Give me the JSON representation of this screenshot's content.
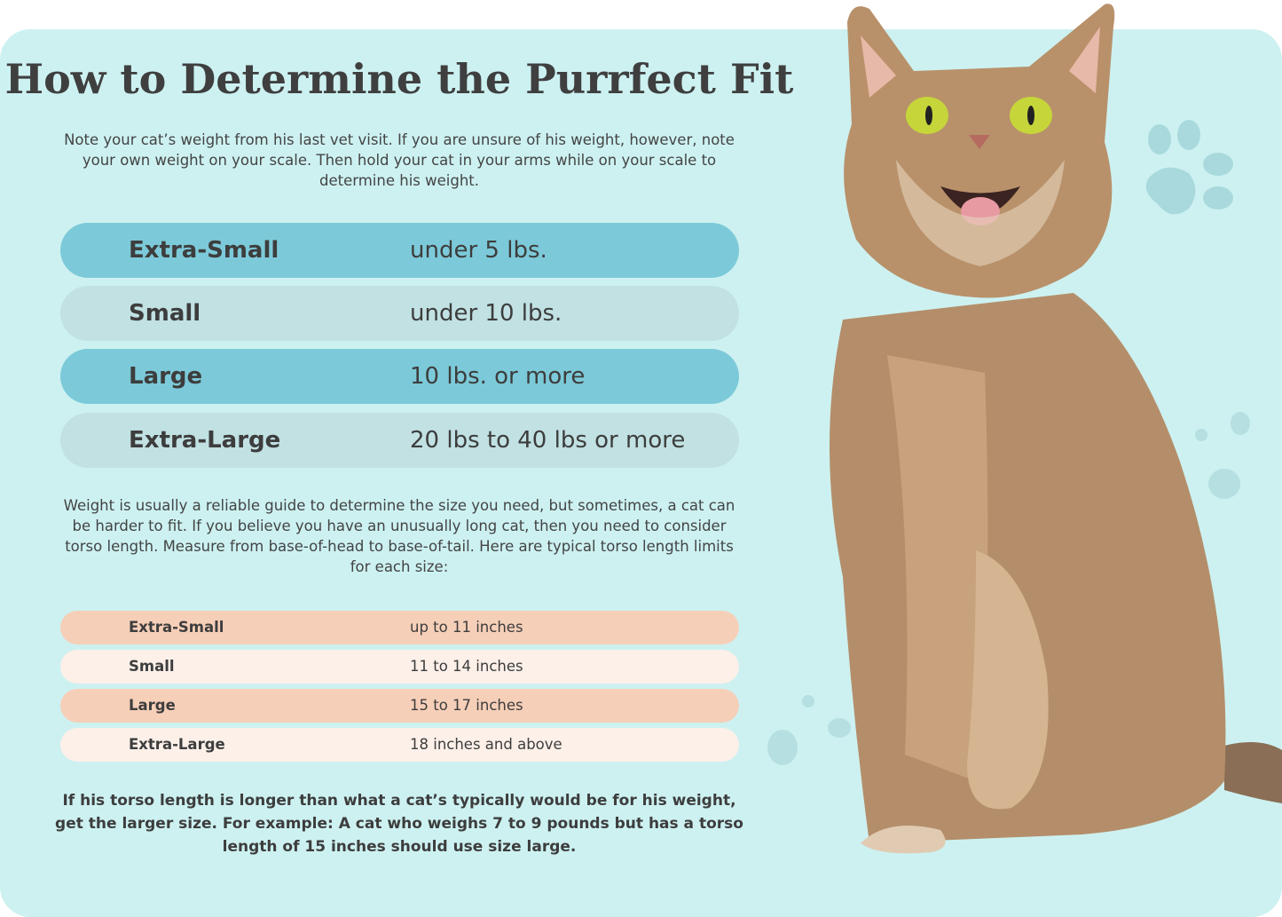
{
  "title": "How to Determine the Purrfect Fit",
  "intro": "Note your cat’s weight from his last vet visit. If you are unsure of his weight, however, note your own weight on your scale. Then hold your cat in your arms while on your scale to determine his weight.",
  "weight_table": [
    {
      "size": "Extra-Small",
      "weight": "under 5 lbs."
    },
    {
      "size": "Small",
      "weight": "under 10 lbs."
    },
    {
      "size": "Large",
      "weight": "10 lbs. or more"
    },
    {
      "size": "Extra-Large",
      "weight": "20 lbs to 40 lbs or more"
    }
  ],
  "torso_intro": "Weight is usually a reliable guide to determine the size you need, but sometimes, a cat can be harder to fit. If you believe you have an unusually long cat, then you need to consider torso length. Measure from base-of-head to base-of-tail. Here are typical torso length limits for each size:",
  "torso_table": [
    {
      "size": "Extra-Small",
      "length": "up to 11 inches"
    },
    {
      "size": "Small",
      "length": "11 to 14 inches"
    },
    {
      "size": "Large",
      "length": "15 to 17 inches"
    },
    {
      "size": "Extra-Large",
      "length": "18 inches and above"
    }
  ],
  "footer_note": "If his torso length is longer than what a cat’s typically would be for his weight, get the larger size. For example: A cat who weighs 7 to 9 pounds but has a torso length of 15 inches should use size large.",
  "colors": {
    "background": "#cdf1f1",
    "weight_dark": "#7ccad9",
    "weight_light": "#c1e1e3",
    "torso_dark": "#f6cfb8",
    "torso_light": "#fcf0e9"
  },
  "images": {
    "cat": "tabby-cat-photo",
    "paws": "paw-print-icon"
  }
}
